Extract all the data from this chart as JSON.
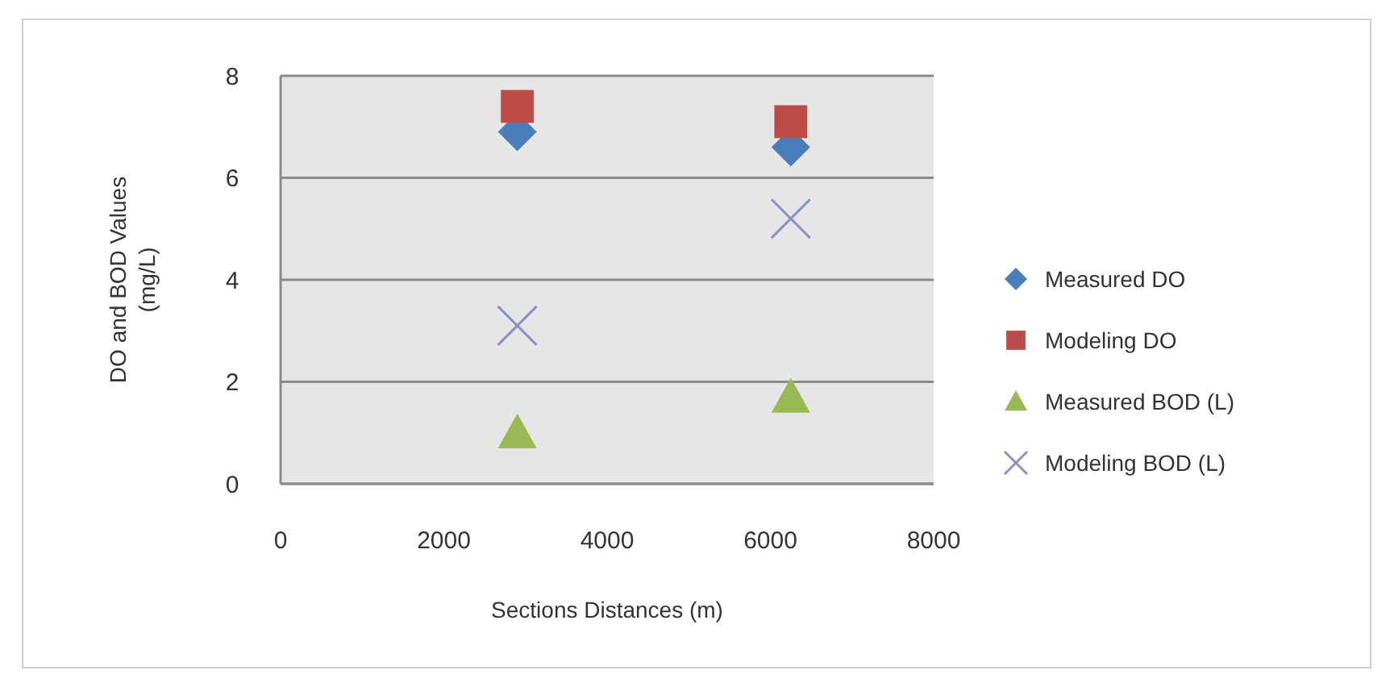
{
  "chart_data": {
    "type": "scatter",
    "xlabel": "Sections Distances (m)",
    "ylabel": "DO and BOD Values (mg/L)",
    "x": [
      2900,
      6250
    ],
    "xlim": [
      0,
      8000
    ],
    "xticks": [
      0,
      2000,
      4000,
      6000,
      8000
    ],
    "ylim": [
      0,
      8
    ],
    "yticks": [
      0,
      2,
      4,
      6,
      8
    ],
    "grid": "y",
    "legend": "right",
    "series": [
      {
        "name": "Measured DO",
        "color": "#4a7ebb",
        "marker": "diamond",
        "values": [
          6.9,
          6.6
        ]
      },
      {
        "name": "Modeling DO",
        "color": "#be4b48",
        "marker": "square",
        "values": [
          7.4,
          7.1
        ]
      },
      {
        "name": "Measured BOD (L)",
        "color": "#98b954",
        "marker": "triangle",
        "values": [
          1.0,
          1.7
        ]
      },
      {
        "name": "Modeling BOD (L)",
        "color": "#8a8fc8",
        "marker": "cross",
        "values": [
          3.1,
          5.2
        ]
      }
    ]
  }
}
